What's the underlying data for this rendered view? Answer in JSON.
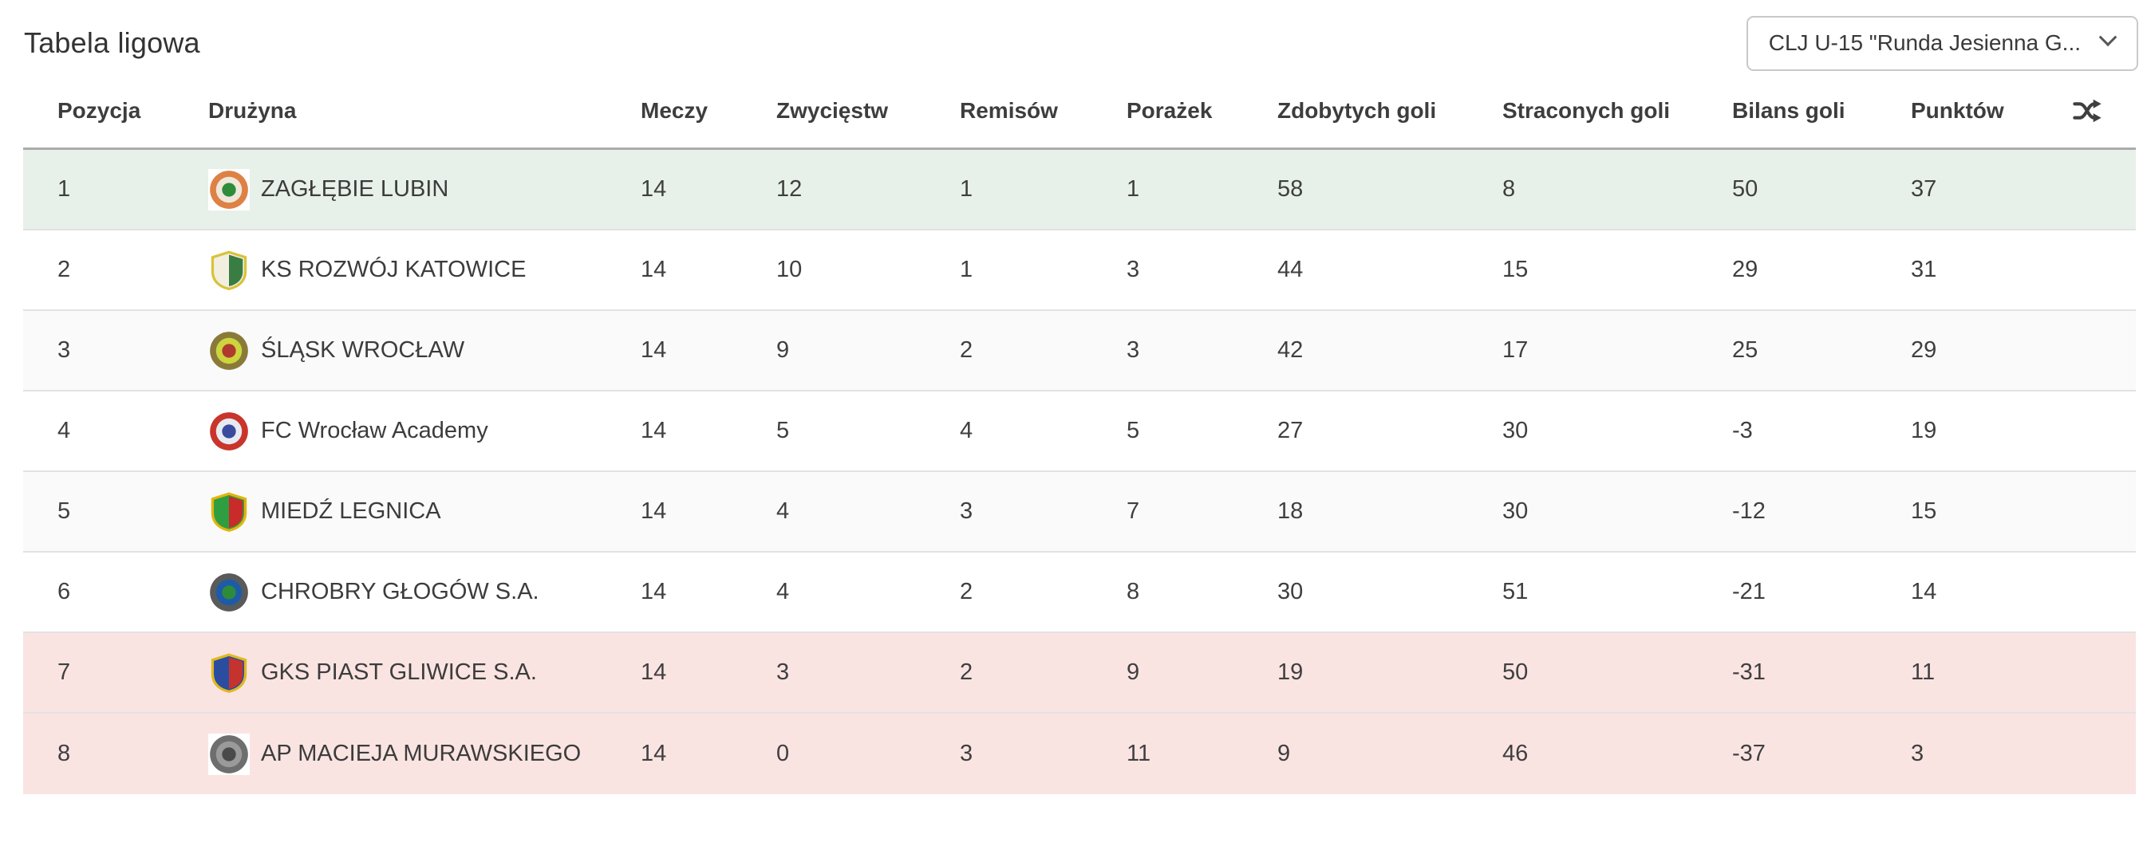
{
  "page": {
    "title": "Tabela ligowa"
  },
  "season_select": {
    "value": "CLJ U-15 \"Runda Jesienna G...",
    "chevron_icon": "chevron-down"
  },
  "table": {
    "columns": [
      {
        "key": "pos",
        "label": "Pozycja"
      },
      {
        "key": "team",
        "label": "Drużyna"
      },
      {
        "key": "played",
        "label": "Meczy"
      },
      {
        "key": "wins",
        "label": "Zwycięstw"
      },
      {
        "key": "draws",
        "label": "Remisów"
      },
      {
        "key": "losses",
        "label": "Porażek"
      },
      {
        "key": "goals_for",
        "label": "Zdobytych goli"
      },
      {
        "key": "goals_against",
        "label": "Straconych goli"
      },
      {
        "key": "goal_diff",
        "label": "Bilans goli"
      },
      {
        "key": "points",
        "label": "Punktów"
      }
    ],
    "sort_icon": "shuffle",
    "highlight_colors": {
      "promotion": "#e8f1e9",
      "relegation": "#fae4e2",
      "zebra": "#fafafa"
    },
    "rows": [
      {
        "pos": "1",
        "team": "ZAGŁĘBIE LUBIN",
        "played": "14",
        "wins": "12",
        "draws": "1",
        "losses": "1",
        "goals_for": "58",
        "goals_against": "8",
        "goal_diff": "50",
        "points": "37",
        "highlight": "promotion",
        "badge": {
          "name": "zaglebie-lubin-crest",
          "shape": "circle",
          "white_box": true,
          "colors": [
            "#de8144",
            "#efe8da",
            "#2f8c3c"
          ]
        }
      },
      {
        "pos": "2",
        "team": "KS ROZWÓJ KATOWICE",
        "played": "14",
        "wins": "10",
        "draws": "1",
        "losses": "3",
        "goals_for": "44",
        "goals_against": "15",
        "goal_diff": "29",
        "points": "31",
        "highlight": "",
        "badge": {
          "name": "rozwoj-katowice-crest",
          "shape": "shield",
          "white_box": false,
          "colors": [
            "#f2efe1",
            "#3a7d44",
            "#d9c23a"
          ]
        }
      },
      {
        "pos": "3",
        "team": "ŚLĄSK WROCŁAW",
        "played": "14",
        "wins": "9",
        "draws": "2",
        "losses": "3",
        "goals_for": "42",
        "goals_against": "17",
        "goal_diff": "25",
        "points": "29",
        "highlight": "",
        "badge": {
          "name": "slask-wroclaw-crest",
          "shape": "circle",
          "white_box": false,
          "colors": [
            "#8a7a3a",
            "#cdd53e",
            "#b03a2e"
          ]
        }
      },
      {
        "pos": "4",
        "team": "FC Wrocław Academy",
        "played": "14",
        "wins": "5",
        "draws": "4",
        "losses": "5",
        "goals_for": "27",
        "goals_against": "30",
        "goal_diff": "-3",
        "points": "19",
        "highlight": "",
        "badge": {
          "name": "fc-wroclaw-academy-crest",
          "shape": "circle",
          "white_box": false,
          "colors": [
            "#c9352b",
            "#e8eaf2",
            "#3a4a9c"
          ]
        }
      },
      {
        "pos": "5",
        "team": "MIEDŹ LEGNICA",
        "played": "14",
        "wins": "4",
        "draws": "3",
        "losses": "7",
        "goals_for": "18",
        "goals_against": "30",
        "goal_diff": "-12",
        "points": "15",
        "highlight": "",
        "badge": {
          "name": "miedz-legnica-crest",
          "shape": "shield",
          "white_box": false,
          "colors": [
            "#2f9e41",
            "#c92a2a",
            "#e3b50f"
          ]
        }
      },
      {
        "pos": "6",
        "team": "CHROBRY GŁOGÓW S.A.",
        "played": "14",
        "wins": "4",
        "draws": "2",
        "losses": "8",
        "goals_for": "30",
        "goals_against": "51",
        "goal_diff": "-21",
        "points": "14",
        "highlight": "",
        "badge": {
          "name": "chrobry-glogow-crest",
          "shape": "circle",
          "white_box": false,
          "colors": [
            "#5a5a5a",
            "#1d5ba8",
            "#2e8b3a"
          ]
        }
      },
      {
        "pos": "7",
        "team": "GKS PIAST GLIWICE S.A.",
        "played": "14",
        "wins": "3",
        "draws": "2",
        "losses": "9",
        "goals_for": "19",
        "goals_against": "50",
        "goal_diff": "-31",
        "points": "11",
        "highlight": "relegation",
        "badge": {
          "name": "piast-gliwice-crest",
          "shape": "shield",
          "white_box": false,
          "colors": [
            "#2a4da0",
            "#c4332e",
            "#e0b920"
          ]
        }
      },
      {
        "pos": "8",
        "team": "AP MACIEJA MURAWSKIEGO",
        "played": "14",
        "wins": "0",
        "draws": "3",
        "losses": "11",
        "goals_for": "9",
        "goals_against": "46",
        "goal_diff": "-37",
        "points": "3",
        "highlight": "relegation",
        "badge": {
          "name": "ap-macieja-murawskiego-crest",
          "shape": "circle",
          "white_box": true,
          "colors": [
            "#6e6e6e",
            "#9a9a9a",
            "#4a4a4a"
          ]
        }
      }
    ]
  }
}
